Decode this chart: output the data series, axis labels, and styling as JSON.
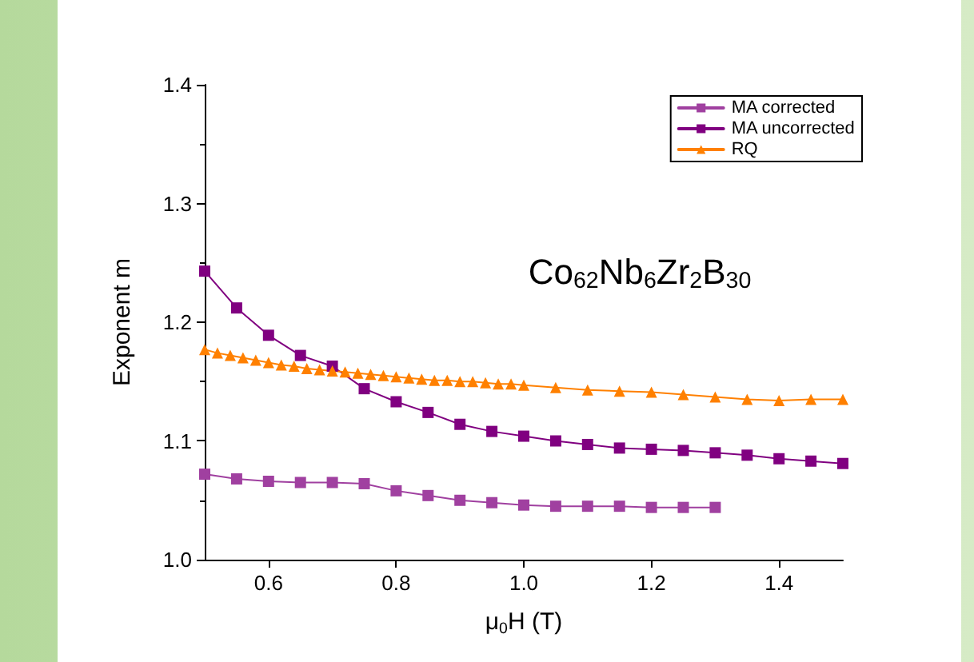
{
  "chart_data": {
    "type": "line",
    "xlabel": "μ$_{0}$H (T)",
    "ylabel": "Exponent m",
    "annotations": [
      "Co$_{62}$Nb$_{6}$Zr$_{2}$B$_{30}$"
    ],
    "xlim": [
      0.5,
      1.5
    ],
    "xticks": [
      0.6,
      0.8,
      {
        "value": 1,
        "label": "1.0"
      },
      1.2,
      1.4
    ],
    "ylim": [
      1,
      1.4
    ],
    "yticks": [
      {
        "value": 1,
        "label": "1.0"
      },
      1.1,
      1.2,
      1.3,
      1.4
    ],
    "grid": false,
    "legend": "top right",
    "line_style": "solid",
    "series": [
      {
        "name": "MA corrected",
        "color": "#a040a0",
        "marker": "square",
        "x": [
          0.5,
          0.55,
          0.6,
          0.65,
          0.7,
          0.75,
          0.8,
          0.85,
          0.9,
          0.95,
          1.0,
          1.05,
          1.1,
          1.15,
          1.2,
          1.25,
          1.3
        ],
        "values": [
          1.072,
          1.068,
          1.066,
          1.065,
          1.065,
          1.064,
          1.058,
          1.054,
          1.05,
          1.048,
          1.046,
          1.045,
          1.045,
          1.045,
          1.044,
          1.044,
          1.044
        ]
      },
      {
        "name": "MA uncorrected",
        "color": "#800080",
        "marker": "square",
        "x": [
          0.5,
          0.55,
          0.6,
          0.65,
          0.7,
          0.75,
          0.8,
          0.85,
          0.9,
          0.95,
          1.0,
          1.05,
          1.1,
          1.15,
          1.2,
          1.25,
          1.3,
          1.35,
          1.4,
          1.45,
          1.5
        ],
        "values": [
          1.243,
          1.212,
          1.189,
          1.172,
          1.163,
          1.144,
          1.133,
          1.124,
          1.114,
          1.108,
          1.104,
          1.1,
          1.097,
          1.094,
          1.093,
          1.092,
          1.09,
          1.088,
          1.085,
          1.083,
          1.081
        ]
      },
      {
        "name": "RQ",
        "color": "#ff8000",
        "marker": "triangle",
        "x": [
          0.5,
          0.52,
          0.54,
          0.56,
          0.58,
          0.6,
          0.62,
          0.64,
          0.66,
          0.68,
          0.7,
          0.72,
          0.74,
          0.76,
          0.78,
          0.8,
          0.82,
          0.84,
          0.86,
          0.88,
          0.9,
          0.92,
          0.94,
          0.96,
          0.98,
          1.0,
          1.05,
          1.1,
          1.15,
          1.2,
          1.25,
          1.3,
          1.35,
          1.4,
          1.45,
          1.5
        ],
        "values": [
          1.177,
          1.174,
          1.172,
          1.17,
          1.168,
          1.166,
          1.164,
          1.163,
          1.161,
          1.16,
          1.159,
          1.158,
          1.157,
          1.156,
          1.155,
          1.154,
          1.153,
          1.152,
          1.151,
          1.151,
          1.15,
          1.15,
          1.149,
          1.148,
          1.148,
          1.147,
          1.145,
          1.143,
          1.142,
          1.141,
          1.139,
          1.137,
          1.135,
          1.134,
          1.135,
          1.135
        ]
      }
    ]
  }
}
